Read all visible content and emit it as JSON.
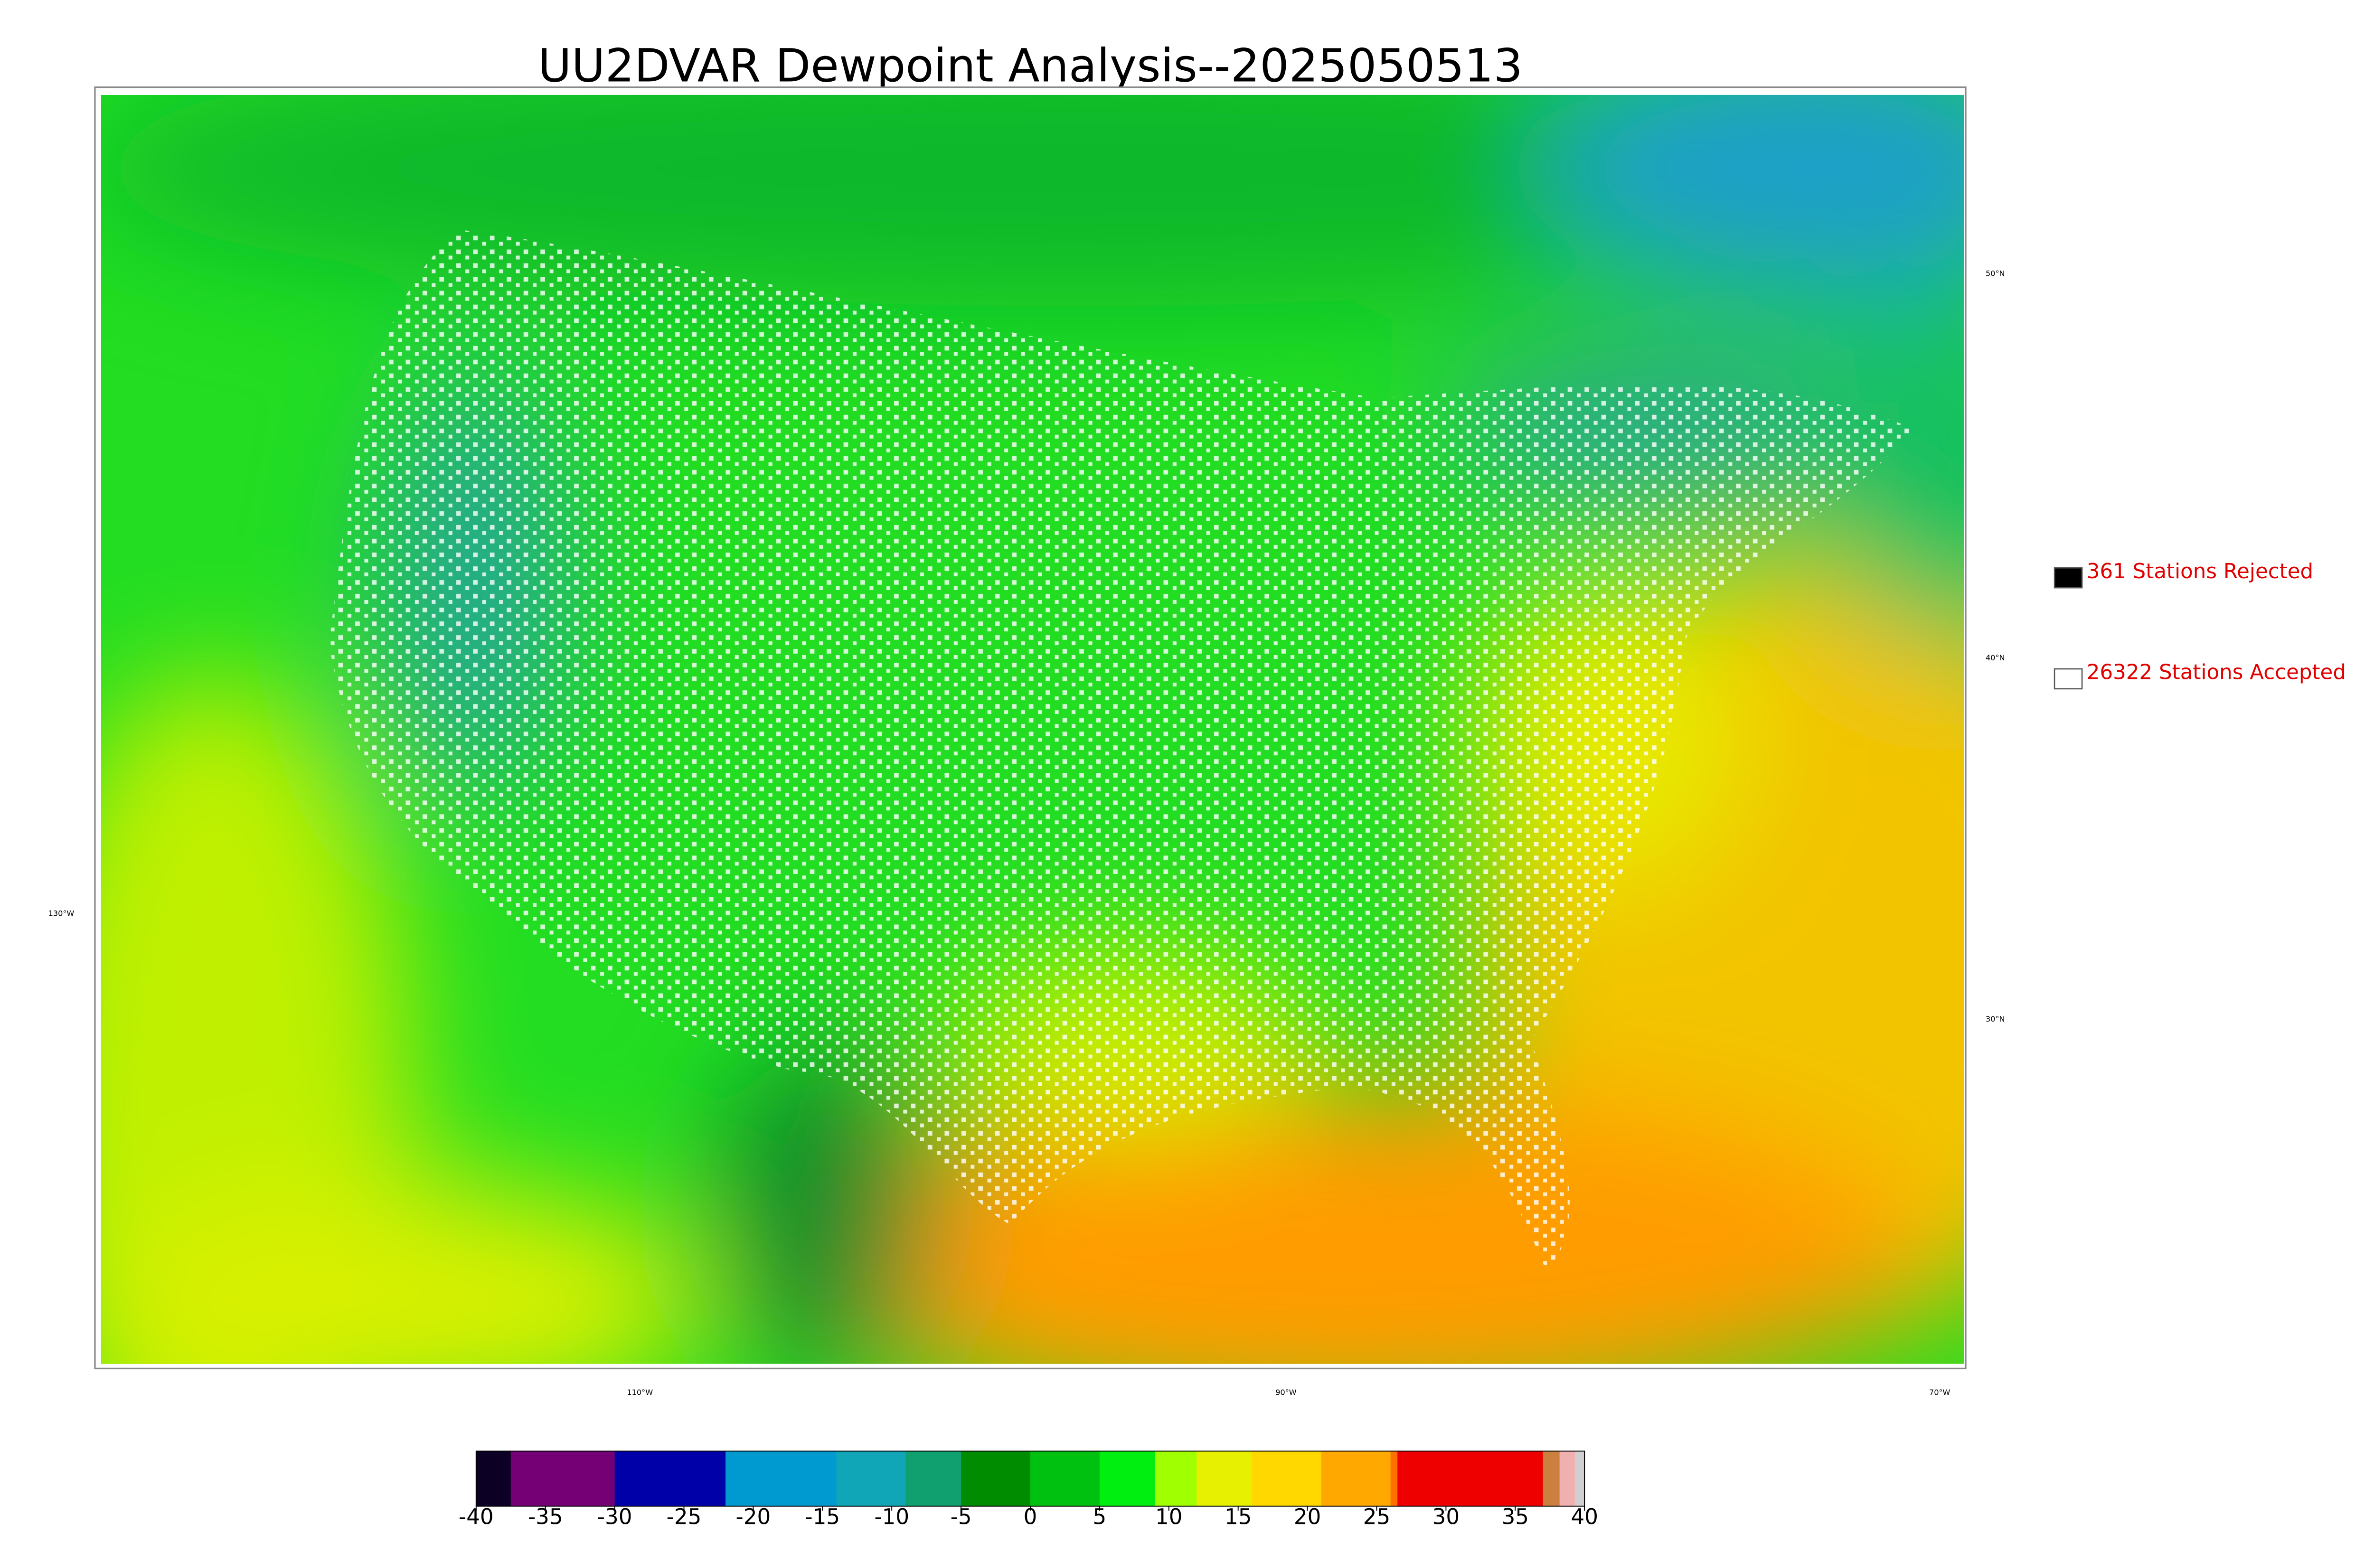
{
  "title": "UU2DVAR Dewpoint Analysis--2025050513",
  "map": {
    "lat_labels": [
      "50°N",
      "40°N",
      "30°N"
    ],
    "lon_labels": [
      "130°W",
      "110°W",
      "90°W",
      "70°W"
    ]
  },
  "legend": [
    {
      "label": "361 Stations Rejected",
      "color": "#000000"
    },
    {
      "label": "26322 Stations Accepted",
      "color": "#ffffff"
    }
  ],
  "colorbar": {
    "range": [
      -40,
      40
    ],
    "ticks": [
      -40,
      -35,
      -30,
      -25,
      -20,
      -15,
      -10,
      -5,
      0,
      5,
      10,
      15,
      20,
      25,
      30,
      35,
      40
    ],
    "segments": [
      {
        "from": -40,
        "to": -37.5,
        "color": "#0c0024"
      },
      {
        "from": -37.5,
        "to": -30,
        "color": "#750075"
      },
      {
        "from": -30,
        "to": -22,
        "color": "#0000a8"
      },
      {
        "from": -22,
        "to": -14,
        "color": "#0099d0"
      },
      {
        "from": -14,
        "to": -9,
        "color": "#10a6b8"
      },
      {
        "from": -9,
        "to": -5,
        "color": "#10a070"
      },
      {
        "from": -5,
        "to": 0,
        "color": "#008c00"
      },
      {
        "from": 0,
        "to": 5,
        "color": "#00c010"
      },
      {
        "from": 5,
        "to": 9,
        "color": "#00ee10"
      },
      {
        "from": 9,
        "to": 12,
        "color": "#a0ff00"
      },
      {
        "from": 12,
        "to": 16,
        "color": "#e6f000"
      },
      {
        "from": 16,
        "to": 21,
        "color": "#ffd800"
      },
      {
        "from": 21,
        "to": 26,
        "color": "#ffa800"
      },
      {
        "from": 26,
        "to": 26.5,
        "color": "#ff7000"
      },
      {
        "from": 26.5,
        "to": 37,
        "color": "#ee0000"
      },
      {
        "from": 37,
        "to": 38.2,
        "color": "#cc8040"
      },
      {
        "from": 38.2,
        "to": 39.3,
        "color": "#f0b0b0"
      },
      {
        "from": 39.3,
        "to": 40,
        "color": "#d0d0d0"
      }
    ]
  }
}
